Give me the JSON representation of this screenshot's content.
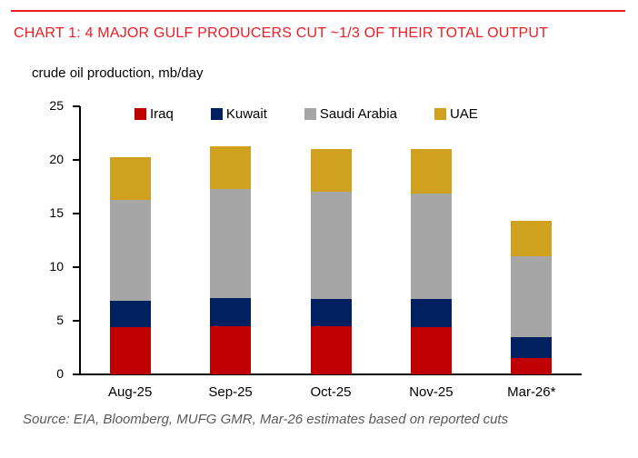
{
  "header": {
    "title": "CHART 1: 4 MAJOR GULF PRODUCERS CUT ~1/3 OF THEIR TOTAL OUTPUT",
    "title_color": "#EC1C24",
    "rule_color": "#EC1C24"
  },
  "chart_data": {
    "type": "bar",
    "stacked": true,
    "axis_title": "crude oil production, mb/day",
    "categories": [
      "Aug-25",
      "Sep-25",
      "Oct-25",
      "Nov-25",
      "Mar-26*"
    ],
    "series": [
      {
        "name": "Iraq",
        "color": "#C00000",
        "values": [
          4.4,
          4.5,
          4.5,
          4.4,
          1.5
        ]
      },
      {
        "name": "Kuwait",
        "color": "#002060",
        "values": [
          2.5,
          2.6,
          2.5,
          2.6,
          2.0
        ]
      },
      {
        "name": "Saudi Arabia",
        "color": "#A6A6A6",
        "values": [
          9.4,
          10.2,
          10.0,
          9.9,
          7.5
        ]
      },
      {
        "name": "UAE",
        "color": "#D0A11E",
        "values": [
          4.0,
          4.0,
          4.0,
          4.1,
          3.3
        ]
      }
    ],
    "totals": [
      20.3,
      21.3,
      21.0,
      21.0,
      14.3
    ],
    "ylim": [
      0,
      25
    ],
    "y_ticks": [
      0,
      5,
      10,
      15,
      20,
      25
    ],
    "grid": false,
    "legend_position": "top-inside",
    "axis_color": "#000000"
  },
  "footer": {
    "source": "Source: EIA, Bloomberg, MUFG GMR, Mar-26 estimates based on reported cuts",
    "source_color": "#595959"
  }
}
